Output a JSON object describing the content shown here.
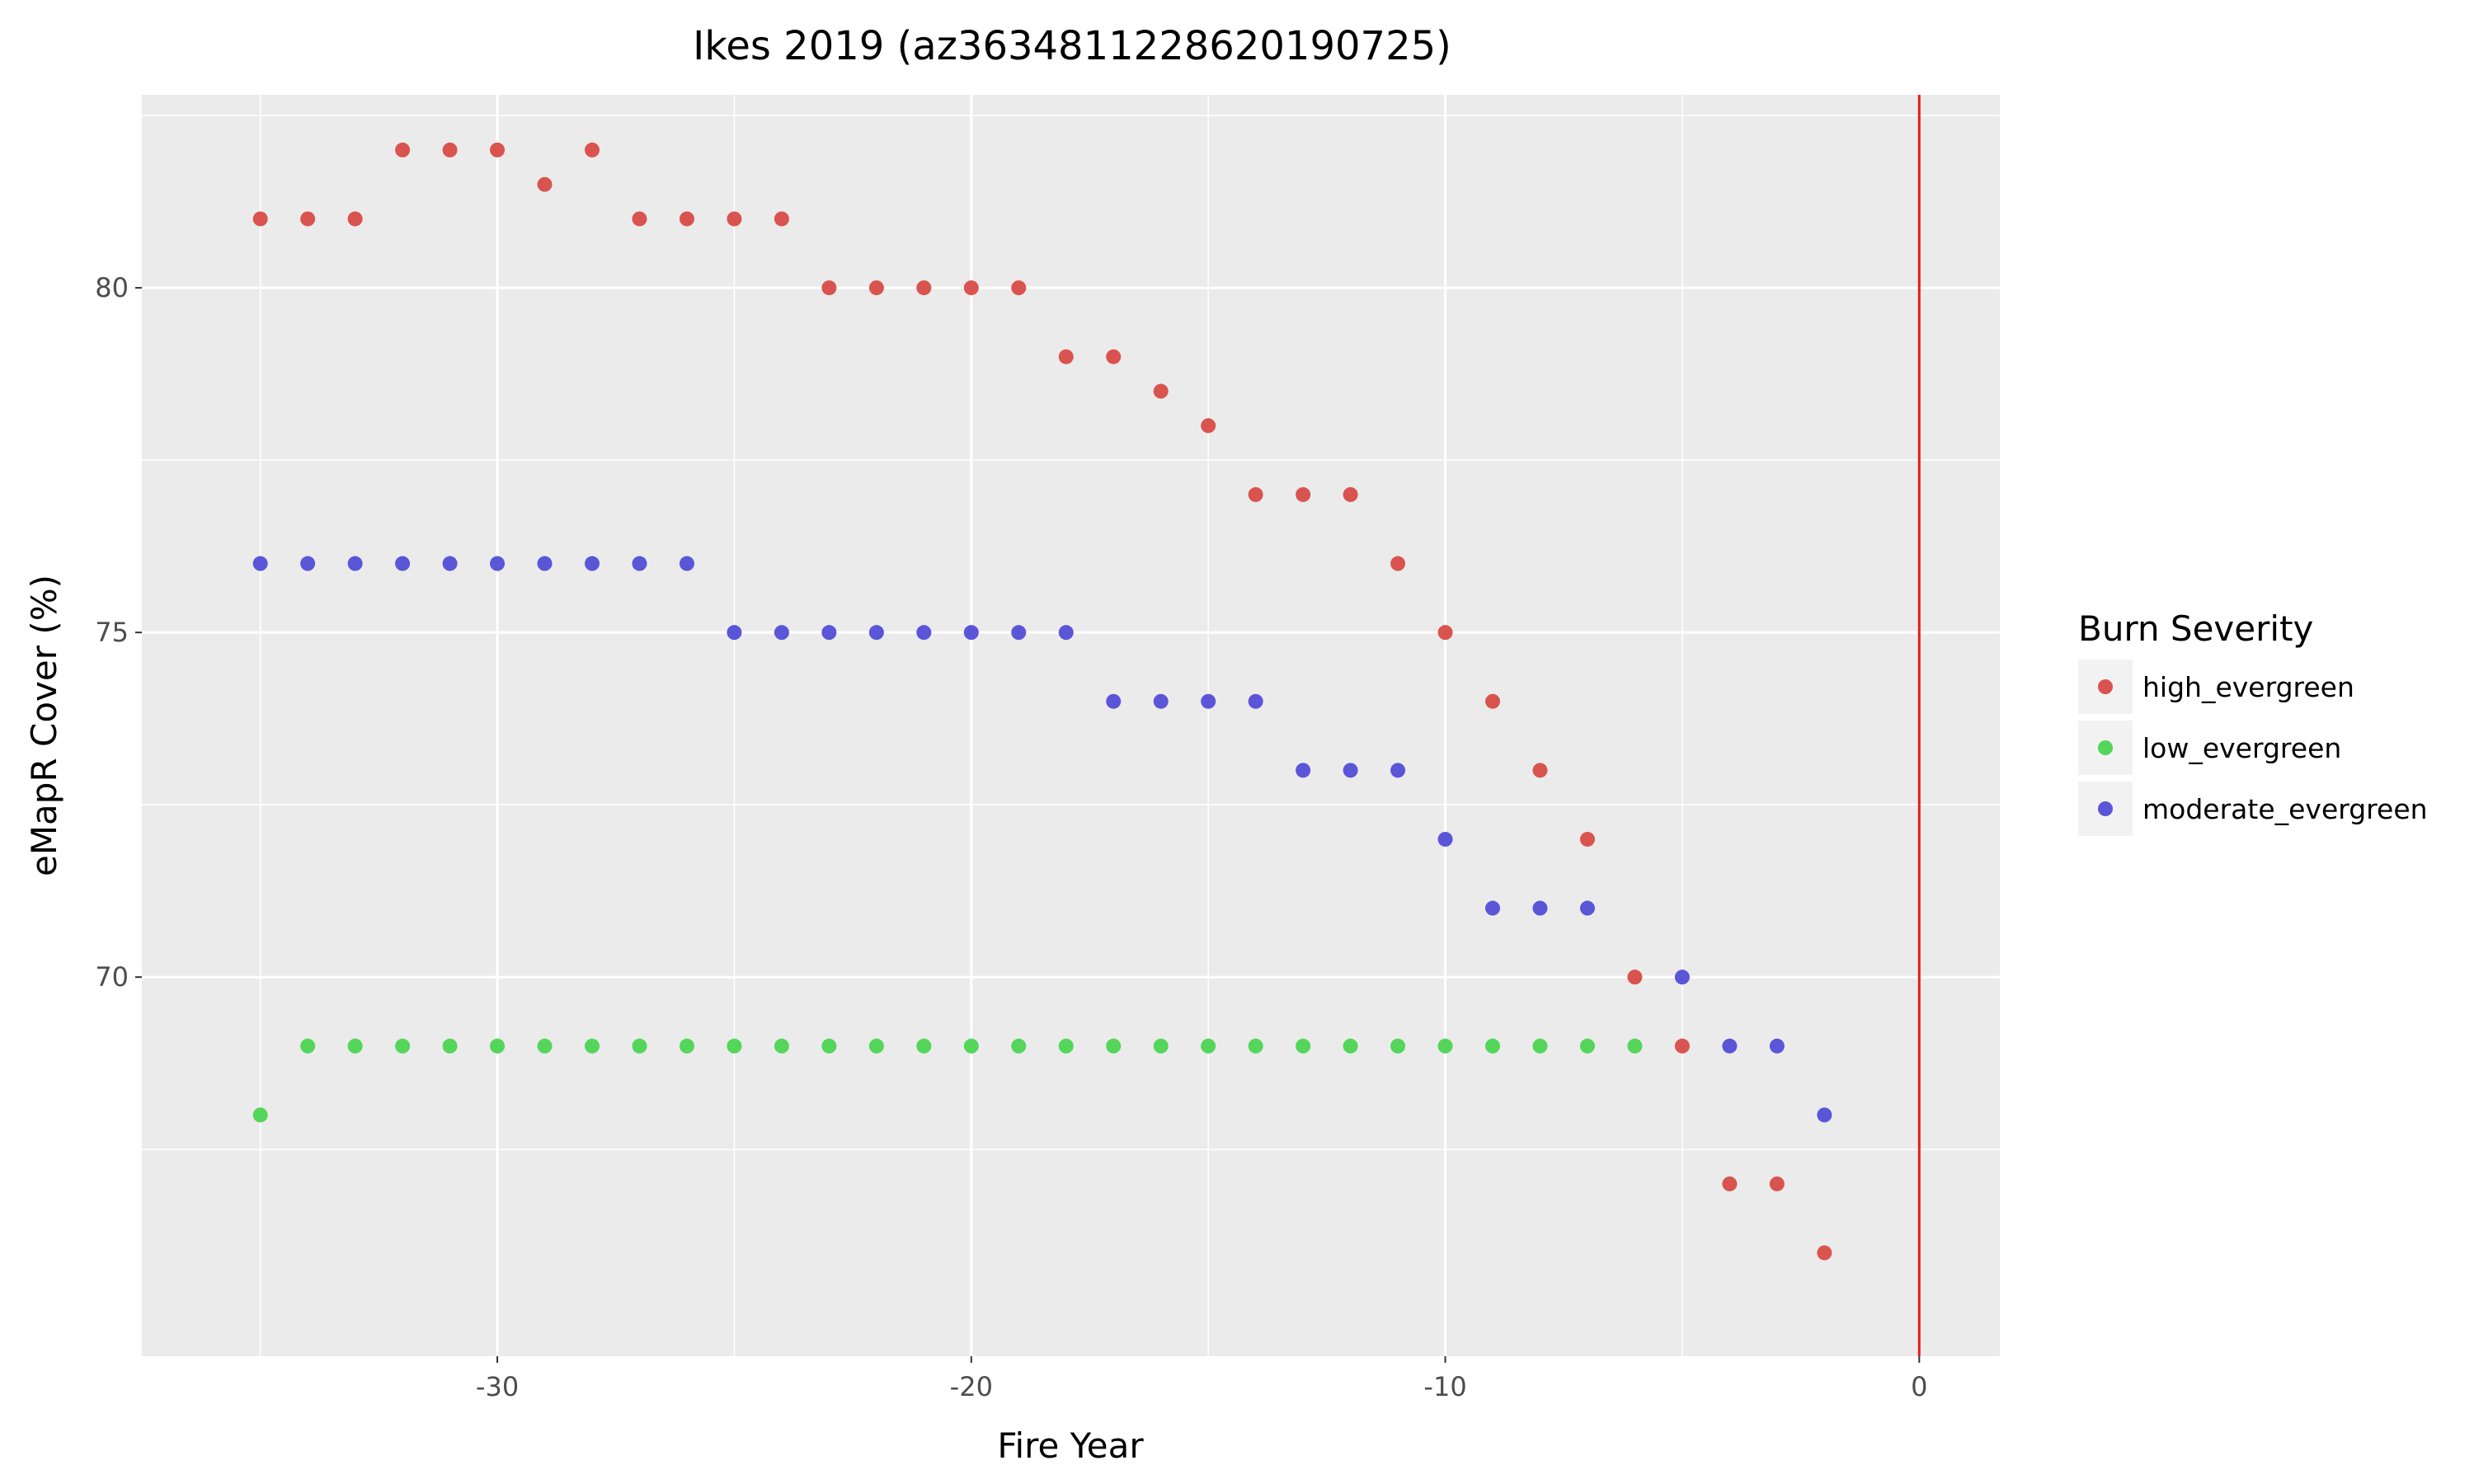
{
  "chart_data": {
    "type": "scatter",
    "title": "Ikes 2019 (az3634811228620190725)",
    "xlabel": "Fire Year",
    "ylabel": "eMapR Cover (%)",
    "xlim": [
      -37.5,
      1.7
    ],
    "ylim": [
      64.5,
      82.8
    ],
    "x_ticks": [
      -30,
      -20,
      -10,
      0
    ],
    "y_ticks": [
      70,
      75,
      80
    ],
    "grid": true,
    "vline_x": 0,
    "vline_color": "#e41a1c",
    "panel_background": "#ebebeb",
    "legend": {
      "title": "Burn Severity",
      "placement": "right"
    },
    "series": [
      {
        "name": "high_evergreen",
        "color": "#d9534f",
        "points": [
          [
            -35,
            81
          ],
          [
            -34,
            81
          ],
          [
            -33,
            81
          ],
          [
            -32,
            82
          ],
          [
            -31,
            82
          ],
          [
            -30,
            82
          ],
          [
            -29,
            81.5
          ],
          [
            -28,
            82
          ],
          [
            -27,
            81
          ],
          [
            -26,
            81
          ],
          [
            -25,
            81
          ],
          [
            -24,
            81
          ],
          [
            -23,
            80
          ],
          [
            -22,
            80
          ],
          [
            -21,
            80
          ],
          [
            -20,
            80
          ],
          [
            -19,
            80
          ],
          [
            -18,
            79
          ],
          [
            -17,
            79
          ],
          [
            -16,
            78.5
          ],
          [
            -15,
            78
          ],
          [
            -14,
            77
          ],
          [
            -13,
            77
          ],
          [
            -12,
            77
          ],
          [
            -11,
            76
          ],
          [
            -10,
            75
          ],
          [
            -9,
            74
          ],
          [
            -8,
            73
          ],
          [
            -7,
            72
          ],
          [
            -6,
            70
          ],
          [
            -5,
            69
          ],
          [
            -4,
            67
          ],
          [
            -3,
            67
          ],
          [
            -2,
            66
          ]
        ]
      },
      {
        "name": "low_evergreen",
        "color": "#53d65a",
        "points": [
          [
            -35,
            68
          ],
          [
            -34,
            69
          ],
          [
            -33,
            69
          ],
          [
            -32,
            69
          ],
          [
            -31,
            69
          ],
          [
            -30,
            69
          ],
          [
            -29,
            69
          ],
          [
            -28,
            69
          ],
          [
            -27,
            69
          ],
          [
            -26,
            69
          ],
          [
            -25,
            69
          ],
          [
            -24,
            69
          ],
          [
            -23,
            69
          ],
          [
            -22,
            69
          ],
          [
            -21,
            69
          ],
          [
            -20,
            69
          ],
          [
            -19,
            69
          ],
          [
            -18,
            69
          ],
          [
            -17,
            69
          ],
          [
            -16,
            69
          ],
          [
            -15,
            69
          ],
          [
            -14,
            69
          ],
          [
            -13,
            69
          ],
          [
            -12,
            69
          ],
          [
            -11,
            69
          ],
          [
            -10,
            69
          ],
          [
            -9,
            69
          ],
          [
            -8,
            69
          ],
          [
            -7,
            69
          ],
          [
            -6,
            69
          ]
        ]
      },
      {
        "name": "moderate_evergreen",
        "color": "#5b55d8",
        "points": [
          [
            -35,
            76
          ],
          [
            -34,
            76
          ],
          [
            -33,
            76
          ],
          [
            -32,
            76
          ],
          [
            -31,
            76
          ],
          [
            -30,
            76
          ],
          [
            -29,
            76
          ],
          [
            -28,
            76
          ],
          [
            -27,
            76
          ],
          [
            -26,
            76
          ],
          [
            -25,
            75
          ],
          [
            -24,
            75
          ],
          [
            -23,
            75
          ],
          [
            -22,
            75
          ],
          [
            -21,
            75
          ],
          [
            -20,
            75
          ],
          [
            -19,
            75
          ],
          [
            -18,
            75
          ],
          [
            -17,
            74
          ],
          [
            -16,
            74
          ],
          [
            -15,
            74
          ],
          [
            -14,
            74
          ],
          [
            -13,
            73
          ],
          [
            -12,
            73
          ],
          [
            -11,
            73
          ],
          [
            -10,
            72
          ],
          [
            -9,
            71
          ],
          [
            -8,
            71
          ],
          [
            -7,
            71
          ],
          [
            -5,
            70
          ],
          [
            -4,
            69
          ],
          [
            -3,
            69
          ],
          [
            -2,
            68
          ]
        ]
      }
    ]
  }
}
